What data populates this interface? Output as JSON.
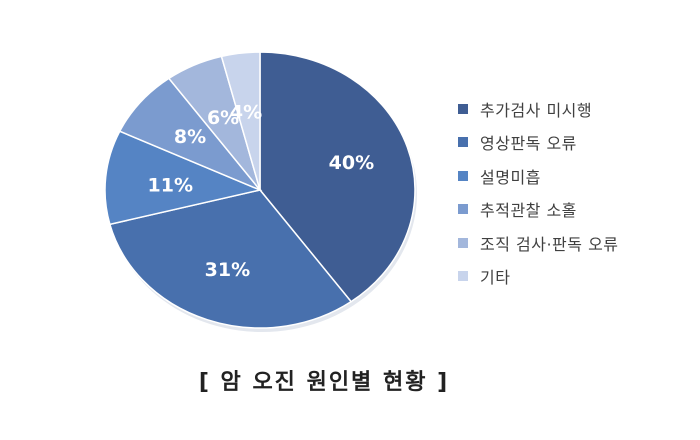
{
  "chart_data": {
    "type": "pie",
    "title": "[ 암 오진 원인별 현황 ]",
    "categories": [
      "추가검사 미시행",
      "영상판독 오류",
      "설명미흡",
      "추적관찰 소홀",
      "조직 검사·판독 오류",
      "기타"
    ],
    "values": [
      40,
      31,
      11,
      8,
      6,
      4
    ],
    "value_labels": [
      "40%",
      "31%",
      "11%",
      "8%",
      "6%",
      "4%"
    ],
    "colors": [
      "#3f5d93",
      "#4870ad",
      "#5584c4",
      "#7b9bcf",
      "#a3b7dc",
      "#c8d4ec"
    ],
    "legend": "right"
  }
}
